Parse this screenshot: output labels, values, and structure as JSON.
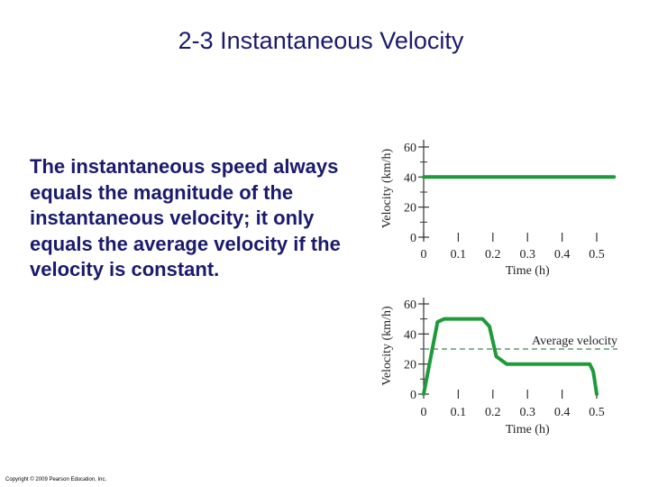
{
  "slide": {
    "title": "2-3 Instantaneous Velocity",
    "body": "The instantaneous speed always equals the magnitude of the instantaneous velocity; it only equals the average velocity if the velocity is constant.",
    "copyright": "Copyright © 2009 Pearson Education, Inc."
  },
  "chart_data": [
    {
      "type": "line",
      "title": "",
      "xlabel": "Time (h)",
      "ylabel": "Velocity (km/h)",
      "xlim": [
        0,
        0.5
      ],
      "ylim": [
        0,
        60
      ],
      "x_ticks": [
        "0",
        "0.1",
        "0.2",
        "0.3",
        "0.4",
        "0.5"
      ],
      "y_ticks": [
        "0",
        "20",
        "40",
        "60"
      ],
      "grid": false,
      "color": "#1e9a3a",
      "series": [
        {
          "x": [
            0,
            0.55
          ],
          "y": [
            40,
            40
          ]
        }
      ]
    },
    {
      "type": "line",
      "title": "",
      "xlabel": "Time (h)",
      "ylabel": "Velocity (km/h)",
      "xlim": [
        0,
        0.5
      ],
      "ylim": [
        0,
        60
      ],
      "x_ticks": [
        "0",
        "0.1",
        "0.2",
        "0.3",
        "0.4",
        "0.5"
      ],
      "y_ticks": [
        "0",
        "20",
        "40",
        "60"
      ],
      "grid": false,
      "color": "#1e9a3a",
      "series": [
        {
          "x": [
            0,
            0.04,
            0.06,
            0.17,
            0.19,
            0.21,
            0.24,
            0.48,
            0.49,
            0.5
          ],
          "y": [
            0,
            48,
            50,
            50,
            45,
            25,
            20,
            20,
            15,
            0
          ]
        }
      ],
      "reference_line": {
        "y": 30,
        "label": "Average velocity",
        "color": "#3a8a5a"
      }
    }
  ]
}
